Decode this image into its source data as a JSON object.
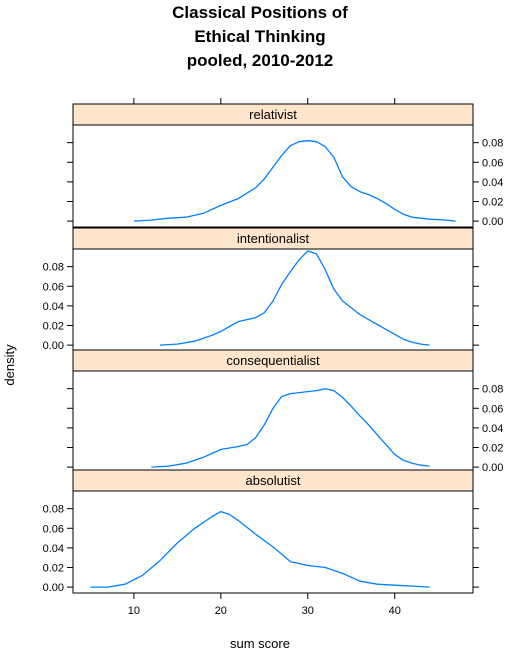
{
  "chart_data": {
    "type": "line",
    "title_lines": [
      "Classical Positions of",
      "Ethical Thinking",
      "pooled, 2010-2012"
    ],
    "xlabel": "sum score",
    "ylabel": "density",
    "xlim": [
      3,
      49
    ],
    "ylim": [
      -0.006,
      0.098
    ],
    "x_ticks": [
      10,
      20,
      30,
      40
    ],
    "y_ticks": [
      0.0,
      0.02,
      0.04,
      0.06,
      0.08
    ],
    "y_tick_labels": [
      "0.00",
      "0.02",
      "0.04",
      "0.06",
      "0.08"
    ],
    "line_color": "#0080ff",
    "strip_color": "#ffe5cc",
    "panels": [
      {
        "name": "relativist",
        "x": [
          10,
          12,
          14,
          16,
          18,
          20,
          22,
          24,
          25,
          26,
          27,
          28,
          29,
          30,
          31,
          32,
          33,
          34,
          35,
          36,
          37,
          38,
          39,
          40,
          41,
          42,
          44,
          46,
          47
        ],
        "y": [
          0.0,
          0.001,
          0.003,
          0.004,
          0.008,
          0.016,
          0.023,
          0.034,
          0.043,
          0.055,
          0.067,
          0.077,
          0.081,
          0.082,
          0.081,
          0.076,
          0.065,
          0.045,
          0.035,
          0.03,
          0.027,
          0.023,
          0.018,
          0.012,
          0.007,
          0.004,
          0.002,
          0.001,
          0.0
        ]
      },
      {
        "name": "intentionalist",
        "x": [
          13,
          15,
          17,
          19,
          20,
          21,
          22,
          23,
          24,
          25,
          26,
          27,
          28,
          29,
          30,
          31,
          32,
          33,
          34,
          35,
          36,
          37,
          38,
          39,
          40,
          41,
          42,
          43,
          44
        ],
        "y": [
          0.0,
          0.001,
          0.004,
          0.01,
          0.014,
          0.019,
          0.024,
          0.026,
          0.028,
          0.033,
          0.045,
          0.062,
          0.075,
          0.087,
          0.096,
          0.093,
          0.077,
          0.057,
          0.045,
          0.038,
          0.031,
          0.026,
          0.021,
          0.016,
          0.011,
          0.006,
          0.003,
          0.001,
          0.0
        ]
      },
      {
        "name": "consequentialist",
        "x": [
          12,
          14,
          16,
          18,
          20,
          22,
          23,
          24,
          25,
          26,
          27,
          28,
          29,
          30,
          31,
          32,
          33,
          34,
          35,
          36,
          37,
          38,
          39,
          40,
          41,
          42,
          43,
          44
        ],
        "y": [
          0.0,
          0.001,
          0.004,
          0.01,
          0.018,
          0.021,
          0.023,
          0.03,
          0.043,
          0.06,
          0.072,
          0.075,
          0.076,
          0.077,
          0.078,
          0.08,
          0.078,
          0.071,
          0.062,
          0.052,
          0.043,
          0.033,
          0.023,
          0.013,
          0.007,
          0.004,
          0.002,
          0.001
        ]
      },
      {
        "name": "absolutist",
        "x": [
          5,
          7,
          9,
          11,
          13,
          15,
          17,
          19,
          20,
          21,
          22,
          24,
          26,
          28,
          30,
          32,
          34,
          36,
          38,
          40,
          42,
          44
        ],
        "y": [
          0.0,
          0.0,
          0.003,
          0.012,
          0.027,
          0.045,
          0.06,
          0.072,
          0.077,
          0.074,
          0.068,
          0.054,
          0.041,
          0.026,
          0.022,
          0.02,
          0.014,
          0.006,
          0.003,
          0.002,
          0.001,
          0.0
        ]
      }
    ],
    "panel_order_top_to_bottom": [
      "relativist",
      "intentionalist",
      "consequentialist",
      "absolutist"
    ]
  }
}
